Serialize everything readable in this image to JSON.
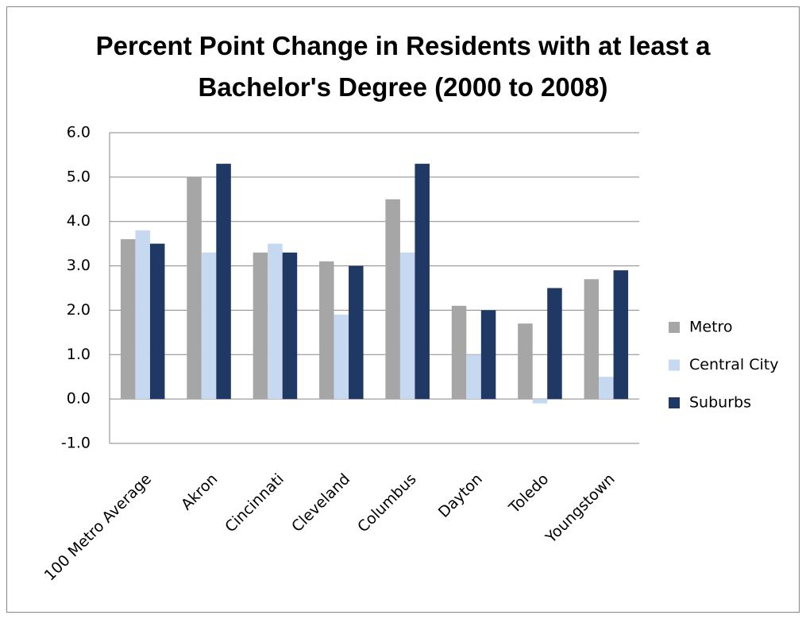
{
  "chart_data": {
    "type": "bar",
    "title": "Percent Point Change in Residents with at least a Bachelor's Degree (2000 to 2008)",
    "categories": [
      "100 Metro Average",
      "Akron",
      "Cincinnati",
      "Cleveland",
      "Columbus",
      "Dayton",
      "Toledo",
      "Youngstown"
    ],
    "series": [
      {
        "name": "Metro",
        "color": "#a6a6a6",
        "values": [
          3.6,
          5.0,
          3.3,
          3.1,
          4.5,
          2.1,
          1.7,
          2.7
        ]
      },
      {
        "name": "Central City",
        "color": "#c6d9f1",
        "values": [
          3.8,
          3.3,
          3.5,
          1.9,
          3.3,
          1.0,
          -0.1,
          0.5
        ]
      },
      {
        "name": "Suburbs",
        "color": "#1f3864",
        "values": [
          3.5,
          5.3,
          3.3,
          3.0,
          5.3,
          2.0,
          2.5,
          2.9
        ]
      }
    ],
    "ylim": [
      -1,
      6
    ],
    "yticks": [
      {
        "value": -1,
        "label": "-1.0"
      },
      {
        "value": 0,
        "label": "0.0"
      },
      {
        "value": 1,
        "label": "1.0"
      },
      {
        "value": 2,
        "label": "2.0"
      },
      {
        "value": 3,
        "label": "3.0"
      },
      {
        "value": 4,
        "label": "4.0"
      },
      {
        "value": 5,
        "label": "5.0"
      },
      {
        "value": 6,
        "label": "6.0"
      }
    ],
    "grid": true,
    "legend": "right"
  }
}
